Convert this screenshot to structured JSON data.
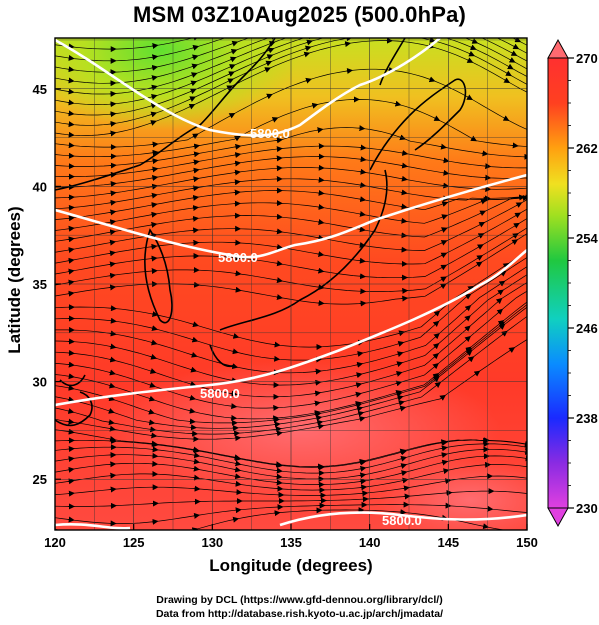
{
  "title": "MSM 03Z10Aug2025 (500.0hPa)",
  "x_axis": {
    "label": "Longitude (degrees)",
    "range": [
      120,
      150
    ],
    "ticks": [
      "120",
      "125",
      "130",
      "135",
      "140",
      "145",
      "150"
    ]
  },
  "y_axis": {
    "label": "Latitude  (degrees)",
    "range": [
      22.4,
      47.6
    ],
    "ticks": [
      "25",
      "30",
      "35",
      "40",
      "45"
    ]
  },
  "colorbar": {
    "range": [
      230,
      270
    ],
    "ticks": [
      "230",
      "238",
      "246",
      "254",
      "262",
      "270"
    ],
    "colors": [
      "#e040e0",
      "#8a2be2",
      "#1a2aff",
      "#0aa0ff",
      "#10d0c0",
      "#20c840",
      "#a0e020",
      "#f0e020",
      "#ff9a10",
      "#ff3020",
      "#ff7070"
    ]
  },
  "contours": {
    "label_text": "5800.0"
  },
  "credits": {
    "line1": "Drawing by DCL (https://www.gfd-dennou.org/library/dcl/)",
    "line2": "Data from http://database.rish.kyoto-u.ac.jp/arch/jmadata/"
  }
}
